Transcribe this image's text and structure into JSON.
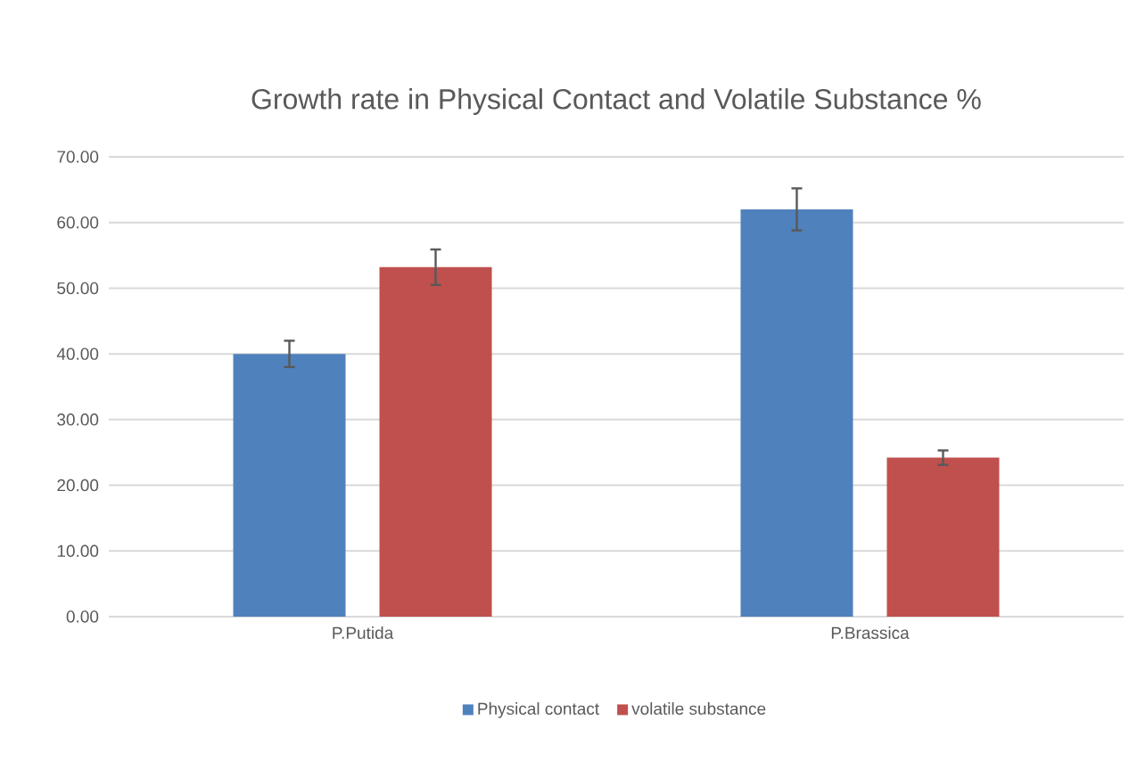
{
  "chart_data": {
    "type": "bar",
    "title": "Growth rate in Physical Contact and Volatile Substance %",
    "categories": [
      "P.Putida",
      "P.Brassica"
    ],
    "series": [
      {
        "name": "Physical contact",
        "color": "#4f81bd",
        "values": [
          40.0,
          62.0
        ],
        "errors": [
          2.0,
          3.2
        ]
      },
      {
        "name": "volatile substance",
        "color": "#c0504d",
        "values": [
          53.2,
          24.2
        ],
        "errors": [
          2.7,
          1.1
        ]
      }
    ],
    "ylim": [
      0,
      70
    ],
    "yticks": [
      {
        "value": 0,
        "label": "0.00"
      },
      {
        "value": 10,
        "label": "10.00"
      },
      {
        "value": 20,
        "label": "20.00"
      },
      {
        "value": 30,
        "label": "30.00"
      },
      {
        "value": 40,
        "label": "40.00"
      },
      {
        "value": 50,
        "label": "50.00"
      },
      {
        "value": 60,
        "label": "60.00"
      },
      {
        "value": 70,
        "label": "70.00"
      }
    ],
    "grid": "y",
    "legend": "bottom"
  }
}
